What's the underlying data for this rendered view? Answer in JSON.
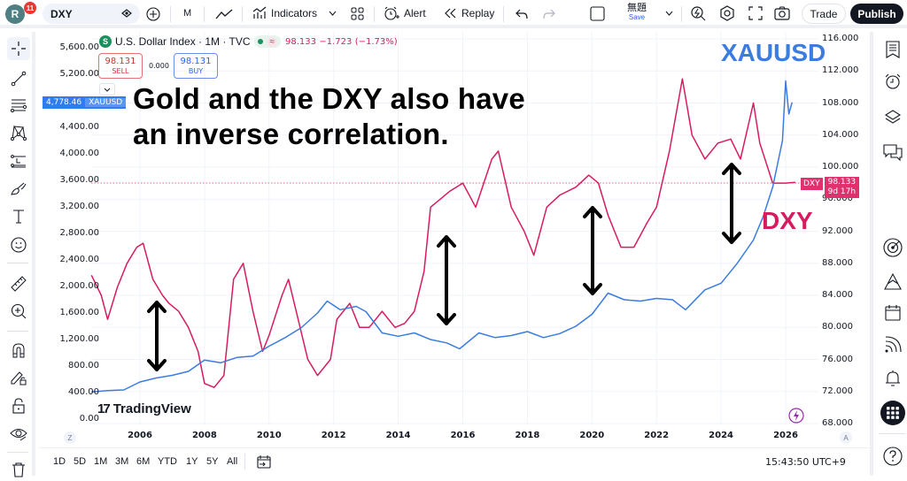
{
  "topbar": {
    "avatar_letter": "R",
    "notification_count": "11",
    "symbol": "DXY",
    "interval": "M",
    "indicators_label": "Indicators",
    "alert_label": "Alert",
    "replay_label": "Replay",
    "layout_name": "無題",
    "save_label": "Save",
    "trade_label": "Trade",
    "publish_label": "Publish"
  },
  "legend": {
    "symbol_icon": "S",
    "title": "U.S. Dollar Index · 1M · TVC",
    "approx_symbol": "≈",
    "last_price": "98.133",
    "change": "−1.723",
    "change_pct": "(−1.73%)",
    "sell_price": "98.131",
    "sell_label": "SELL",
    "spread": "0.000",
    "buy_price": "98.131",
    "buy_label": "BUY"
  },
  "overlay": {
    "xau_price": "4,778.46",
    "xau_name": "XAUUSD",
    "dxy_tag_name": "DXY",
    "dxy_tag_price": "98.133",
    "dxy_tag_countdown": "9d 17h"
  },
  "annotations": {
    "headline_line1": "Gold and the DXY also have",
    "headline_line2": "an inverse correlation.",
    "xauusd_label": "XAUUSD",
    "dxy_label": "DXY"
  },
  "watermark": {
    "logo_mark": "17",
    "logo_text": "TradingView"
  },
  "axes": {
    "left": [
      "5,600.00",
      "5,200.00",
      "4,400.00",
      "4,000.00",
      "3,600.00",
      "3,200.00",
      "2,800.00",
      "2,400.00",
      "2,000.00",
      "1,600.00",
      "1,200.00",
      "800.00",
      "400.00",
      "0.00"
    ],
    "right": [
      "116.000",
      "112.000",
      "108.000",
      "104.000",
      "100.000",
      "96.000",
      "92.000",
      "88.000",
      "84.000",
      "80.000",
      "76.000",
      "72.000",
      "68.000"
    ],
    "x": [
      "2006",
      "2008",
      "2010",
      "2012",
      "2014",
      "2016",
      "2018",
      "2020",
      "2022",
      "2024",
      "2026"
    ],
    "z_label": "Z",
    "a_label": "A"
  },
  "bottom": {
    "ranges": [
      "1D",
      "5D",
      "1M",
      "3M",
      "6M",
      "YTD",
      "1Y",
      "5Y",
      "All"
    ],
    "clock": "15:43:50 UTC+9"
  },
  "colors": {
    "dxy": "#d81b60",
    "xauusd": "#3b7ce0",
    "publish_bg": "#131722"
  },
  "icons": {
    "left_toolbar": [
      "crosshair-icon",
      "trend-line-icon",
      "fib-retracement-icon",
      "pattern-icon",
      "long-position-icon",
      "brush-icon",
      "text-icon",
      "emoji-icon",
      "ruler-icon",
      "zoom-in-icon",
      "magnet-icon",
      "lock-drawing-icon",
      "lock-icon",
      "eye-icon",
      "trash-icon"
    ],
    "right_toolbar": [
      "watchlist-icon",
      "alarm-icon",
      "layers-icon",
      "chat-icon",
      "target-icon",
      "ideas-icon",
      "calendar-icon",
      "streams-icon",
      "bell-icon",
      "apps-grid-icon",
      "help-icon"
    ]
  },
  "chart_data": {
    "type": "line",
    "title": "U.S. Dollar Index · 1M · TVC vs XAUUSD",
    "xlabel": "",
    "ylabel_left": "XAUUSD",
    "ylabel_right": "DXY",
    "ylim_left": [
      0,
      5600
    ],
    "ylim_right": [
      68,
      116
    ],
    "grid": true,
    "legend_position": "top-left",
    "series": [
      {
        "name": "DXY",
        "axis": "right",
        "color": "#d81b60",
        "x": [
          2004.5,
          2004.8,
          2005.0,
          2005.3,
          2005.6,
          2005.9,
          2006.1,
          2006.4,
          2006.7,
          2006.9,
          2007.2,
          2007.5,
          2007.8,
          2008.0,
          2008.3,
          2008.6,
          2008.9,
          2009.2,
          2009.5,
          2009.8,
          2010.0,
          2010.4,
          2010.6,
          2010.9,
          2011.2,
          2011.5,
          2011.9,
          2012.1,
          2012.5,
          2012.8,
          2013.1,
          2013.5,
          2013.9,
          2014.2,
          2014.5,
          2014.8,
          2015.0,
          2015.3,
          2015.6,
          2016.0,
          2016.4,
          2016.9,
          2017.1,
          2017.5,
          2017.9,
          2018.2,
          2018.6,
          2019.0,
          2019.5,
          2019.9,
          2020.2,
          2020.5,
          2020.9,
          2021.3,
          2021.7,
          2022.0,
          2022.4,
          2022.8,
          2023.1,
          2023.5,
          2023.9,
          2024.3,
          2024.6,
          2025.0,
          2025.2,
          2025.6,
          2026.0,
          2026.3
        ],
        "values": [
          86.5,
          84,
          81,
          85,
          88,
          90,
          90.5,
          86,
          84,
          83,
          82,
          80,
          77,
          73,
          72.5,
          74,
          86,
          88,
          82,
          77,
          79,
          84,
          86,
          81,
          76,
          74,
          76,
          81,
          83,
          80,
          80,
          82,
          80,
          80.5,
          82,
          87,
          95,
          96,
          97,
          98,
          95,
          101,
          102,
          95,
          92,
          89,
          95,
          96.5,
          97.5,
          99,
          98,
          94,
          90,
          90,
          93,
          95,
          102,
          111,
          104,
          101,
          103,
          103.5,
          101,
          108,
          103,
          98,
          98,
          98.1
        ],
        "last": 98.133
      },
      {
        "name": "XAUUSD",
        "axis": "left",
        "color": "#3b7ce0",
        "x": [
          2004.5,
          2005.0,
          2005.5,
          2006.0,
          2006.5,
          2007.0,
          2007.5,
          2008.0,
          2008.5,
          2009.0,
          2009.5,
          2010.0,
          2010.5,
          2011.0,
          2011.5,
          2011.8,
          2012.2,
          2012.7,
          2013.0,
          2013.5,
          2014.0,
          2014.5,
          2015.0,
          2015.5,
          2015.9,
          2016.5,
          2017.0,
          2017.5,
          2018.0,
          2018.5,
          2019.0,
          2019.5,
          2020.0,
          2020.5,
          2021.0,
          2021.5,
          2022.0,
          2022.5,
          2022.9,
          2023.5,
          2024.0,
          2024.5,
          2025.0,
          2025.3,
          2025.6,
          2025.9,
          2026.0,
          2026.1,
          2026.2
        ],
        "values": [
          410,
          430,
          440,
          560,
          620,
          660,
          720,
          890,
          850,
          930,
          950,
          1100,
          1230,
          1380,
          1600,
          1780,
          1650,
          1700,
          1620,
          1300,
          1250,
          1300,
          1200,
          1150,
          1060,
          1300,
          1230,
          1260,
          1320,
          1230,
          1290,
          1400,
          1580,
          1900,
          1800,
          1780,
          1820,
          1800,
          1650,
          1950,
          2050,
          2350,
          2700,
          3050,
          3500,
          4200,
          5100,
          4600,
          4778
        ]
      }
    ],
    "annotations": [
      "Gold and the DXY also have an inverse correlation.",
      "XAUUSD",
      "DXY"
    ]
  }
}
